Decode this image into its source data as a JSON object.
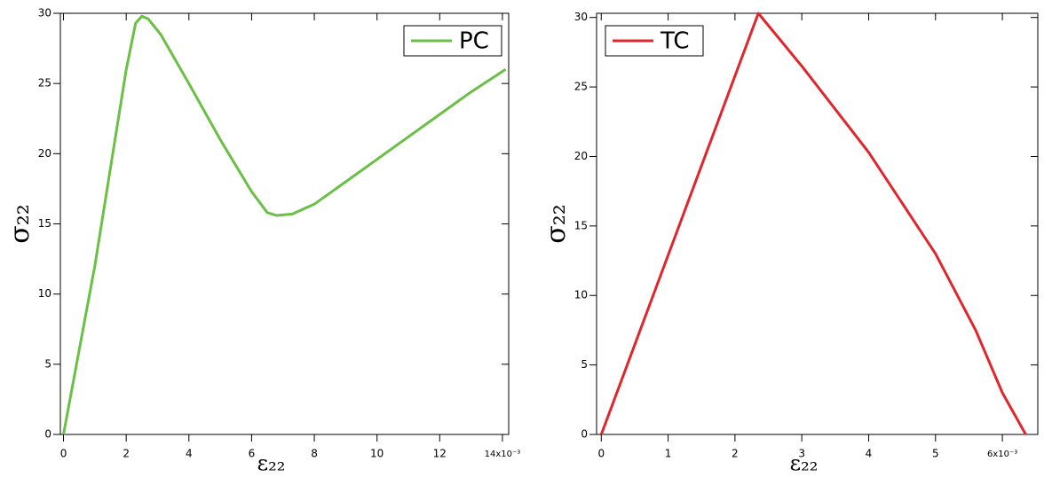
{
  "chart_data": [
    {
      "type": "line",
      "x_label": "ε₂₂",
      "y_label": "σ₂₂",
      "x": [
        0,
        1,
        2,
        2.3,
        2.5,
        2.7,
        3.1,
        4,
        5,
        6,
        6.5,
        6.8,
        7.3,
        8,
        9,
        10,
        11,
        12,
        13,
        14.1
      ],
      "series": [
        {
          "name": "PC",
          "color": "#6abf45",
          "values": [
            0,
            12,
            26,
            29.3,
            29.8,
            29.6,
            28.5,
            25,
            21,
            17.3,
            15.8,
            15.6,
            15.7,
            16.4,
            18,
            19.6,
            21.2,
            22.8,
            24.4,
            26
          ]
        }
      ],
      "xlim": [
        -0.1,
        14.2
      ],
      "ylim": [
        0,
        30
      ],
      "xticks": [
        0,
        2,
        4,
        6,
        8,
        10,
        12,
        {
          "value": 14,
          "label": "14x10⁻³"
        }
      ],
      "yticks": [
        0,
        5,
        10,
        15,
        20,
        25,
        30
      ],
      "legend": "top-right"
    },
    {
      "type": "line",
      "x_label": "ε₂₂",
      "y_label": "σ₂₂",
      "x": [
        0,
        2.35,
        3,
        4,
        5,
        5.6,
        6,
        6.35
      ],
      "series": [
        {
          "name": "TC",
          "color": "#e0262c",
          "values": [
            0,
            30.3,
            26.5,
            20.3,
            13,
            7.5,
            3,
            0
          ]
        }
      ],
      "xlim": [
        -0.07,
        6.53
      ],
      "ylim": [
        0,
        30.3
      ],
      "xticks": [
        0,
        1,
        2,
        3,
        4,
        5,
        {
          "value": 6,
          "label": "6x10⁻³"
        }
      ],
      "yticks": [
        0,
        5,
        10,
        15,
        20,
        25,
        30
      ],
      "legend": "top-left"
    }
  ]
}
